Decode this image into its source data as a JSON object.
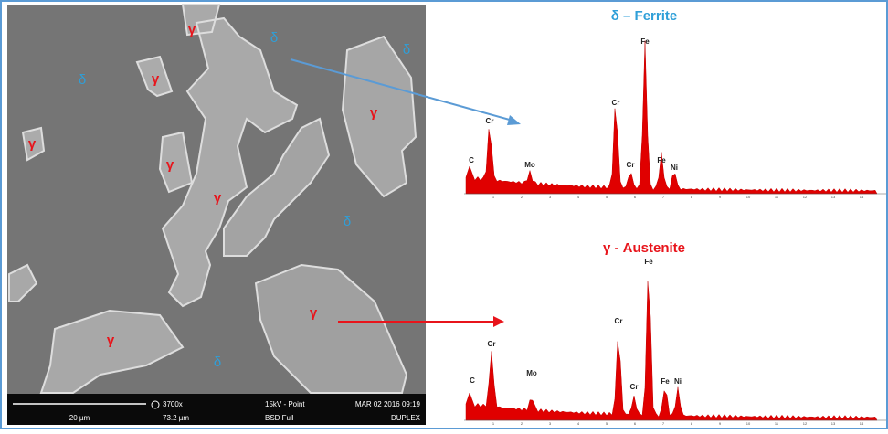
{
  "micrograph": {
    "labels": [
      "δ",
      "δ",
      "δ",
      "δ",
      "δ",
      "γ",
      "γ",
      "γ",
      "γ",
      "γ",
      "γ",
      "γ",
      "γ"
    ],
    "info_bar": {
      "scale": "20 µm",
      "magnification": "3700x",
      "field": "73.2 µm",
      "voltage": "15kV - Point",
      "detector": "BSD Full",
      "date": "MAR 02 2016 09:19",
      "sample": "DUPLEX"
    }
  },
  "spectra": [
    {
      "title": "δ – Ferrite",
      "peaks": [
        "C",
        "Cr",
        "Mo",
        "Cr",
        "Cr",
        "Fe",
        "Fe",
        "Ni"
      ]
    },
    {
      "title": "γ - Austenite",
      "peaks": [
        "C",
        "Cr",
        "Mo",
        "Cr",
        "Cr",
        "Fe",
        "Fe",
        "Ni"
      ]
    }
  ],
  "axis_ticks": [
    "1",
    "2",
    "3",
    "4",
    "5",
    "6",
    "7",
    "8",
    "9",
    "10",
    "11",
    "12",
    "13",
    "14"
  ]
}
